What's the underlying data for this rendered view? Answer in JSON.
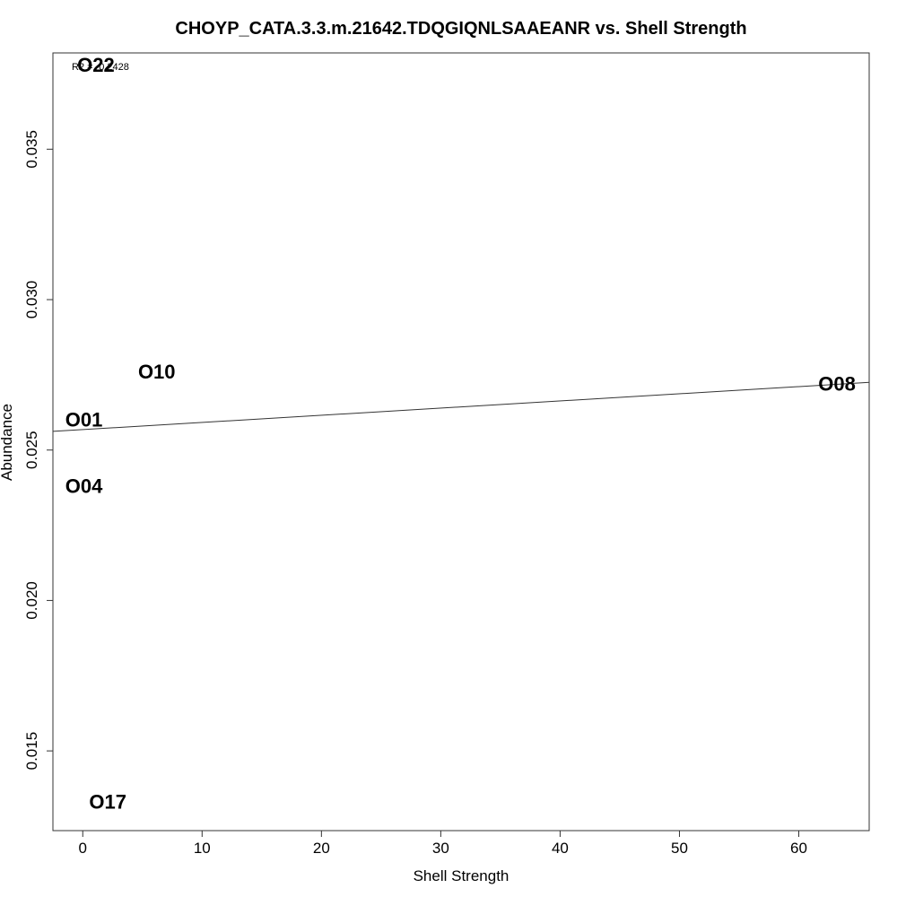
{
  "chart_data": {
    "type": "scatter",
    "title": "CHOYP_CATA.3.3.m.21642.TDQGIQNLSAAEANR vs. Shell Strength",
    "xlabel": "Shell Strength",
    "ylabel": "Abundance",
    "xlim": [
      -2.5,
      65.9
    ],
    "ylim": [
      0.01235,
      0.0382
    ],
    "x_ticks": [
      0,
      10,
      20,
      30,
      40,
      50,
      60
    ],
    "y_ticks": [
      0.015,
      0.02,
      0.025,
      0.03,
      0.035
    ],
    "y_tick_labels": [
      "0.015",
      "0.020",
      "0.025",
      "0.030",
      "0.035"
    ],
    "grid": false,
    "legend": "none",
    "annotation": "R2 = -0.2428",
    "points": [
      {
        "label": "O22",
        "x": 1.1,
        "y": 0.0378
      },
      {
        "label": "O10",
        "x": 6.2,
        "y": 0.0276
      },
      {
        "label": "O08",
        "x": 63.2,
        "y": 0.0272
      },
      {
        "label": "O01",
        "x": 0.1,
        "y": 0.026
      },
      {
        "label": "O04",
        "x": 0.1,
        "y": 0.0238
      },
      {
        "label": "O17",
        "x": 2.1,
        "y": 0.0133
      }
    ],
    "fit_line": {
      "x": [
        -2.5,
        65.9
      ],
      "y": [
        0.02562,
        0.02725
      ]
    }
  }
}
